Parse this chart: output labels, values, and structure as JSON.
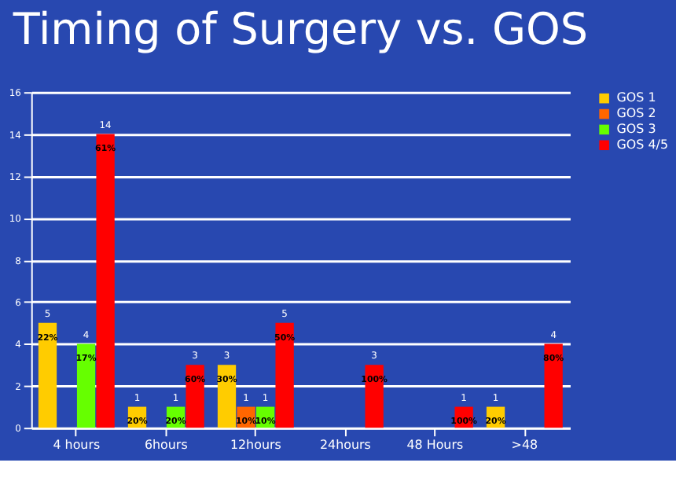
{
  "chart_data": {
    "type": "bar",
    "title": "Timing of Surgery vs. GOS",
    "categories": [
      "4 hours",
      "6hours",
      "12hours",
      "24hours",
      "48 Hours",
      ">48"
    ],
    "series": [
      {
        "name": "GOS 1",
        "color": "#ffcc00",
        "values": [
          5,
          1,
          3,
          null,
          null,
          1
        ]
      },
      {
        "name": "GOS 2",
        "color": "#ff6600",
        "values": [
          null,
          null,
          1,
          null,
          null,
          null
        ]
      },
      {
        "name": "GOS 3",
        "color": "#66ff00",
        "values": [
          4,
          1,
          1,
          null,
          null,
          null
        ]
      },
      {
        "name": "GOS 4/5",
        "color": "#ff0000",
        "values": [
          14,
          3,
          5,
          3,
          1,
          4
        ]
      }
    ],
    "annotations": [
      "22%",
      "17%",
      "61%",
      "20%",
      "20%",
      "60%",
      "30%",
      "10%",
      "10%",
      "50%",
      "100%",
      "100%",
      "20%",
      "80%"
    ],
    "ylim": [
      0,
      16
    ],
    "yticks": [
      0,
      2,
      4,
      6,
      8,
      10,
      12,
      14,
      16
    ],
    "grid": "y",
    "legend": "right",
    "data_labels": true
  }
}
